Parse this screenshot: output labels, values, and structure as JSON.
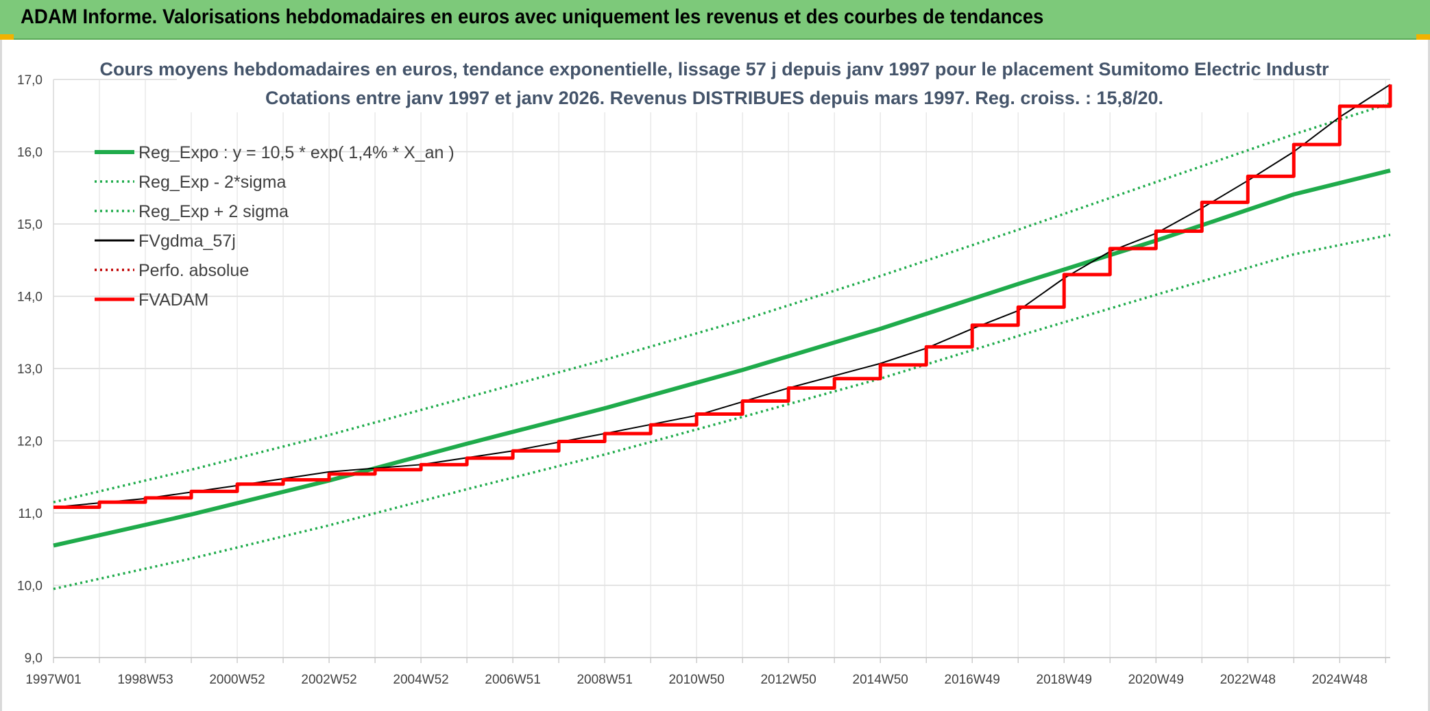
{
  "header": {
    "title": "ADAM Informe. Valorisations hebdomadaires en euros avec uniquement les revenus et des courbes de tendances"
  },
  "chart_data": {
    "type": "line",
    "title_line1": "Cours moyens hebdomadaires en euros, tendance exponentielle, lissage 57 j depuis janv 1997 pour le placement Sumitomo Electric Industr",
    "title_line2": "Cotations entre janv 1997 et janv 2026. Revenus DISTRIBUES depuis mars 1997. Reg. croiss. : 15,8/20.",
    "xlabel": "",
    "ylabel": "",
    "xlim": [
      1997.0,
      2026.1
    ],
    "ylim": [
      9.0,
      17.0
    ],
    "y_ticks": [
      "9,0",
      "10,0",
      "11,0",
      "12,0",
      "13,0",
      "14,0",
      "15,0",
      "16,0",
      "17,0"
    ],
    "y_tick_values": [
      9,
      10,
      11,
      12,
      13,
      14,
      15,
      16,
      17
    ],
    "x_tick_labels": [
      "1997W01",
      "1998W53",
      "2000W52",
      "2002W52",
      "2004W52",
      "2006W51",
      "2008W51",
      "2010W50",
      "2012W50",
      "2014W50",
      "2016W49",
      "2018W49",
      "2020W49",
      "2022W48",
      "2024W48"
    ],
    "x_tick_years": [
      1997.0,
      1999.0,
      2001.0,
      2003.0,
      2005.0,
      2007.0,
      2009.0,
      2011.0,
      2013.0,
      2015.0,
      2017.0,
      2019.0,
      2021.0,
      2023.0,
      2025.0
    ],
    "grid": true,
    "legend_position": "top-left",
    "series": [
      {
        "name": "Reg_Expo : y = 10,5 * exp( 1,4% *  X_an )",
        "color": "#1fab4b",
        "style": "solid-thick",
        "x": [
          1997,
          2000,
          2003,
          2006,
          2009,
          2012,
          2015,
          2018,
          2021,
          2024,
          2026.1
        ],
        "y": [
          10.55,
          10.98,
          11.45,
          11.96,
          12.45,
          12.98,
          13.55,
          14.17,
          14.77,
          15.41,
          15.74
        ]
      },
      {
        "name": "Reg_Exp - 2*sigma",
        "color": "#1fab4b",
        "style": "dotted",
        "x": [
          1997,
          2000,
          2003,
          2006,
          2009,
          2012,
          2015,
          2018,
          2021,
          2024,
          2026.1
        ],
        "y": [
          9.95,
          10.37,
          10.83,
          11.33,
          11.81,
          12.33,
          12.86,
          13.45,
          14.02,
          14.58,
          14.85
        ]
      },
      {
        "name": "Reg_Exp + 2 sigma",
        "color": "#1fab4b",
        "style": "dotted",
        "x": [
          1997,
          2000,
          2003,
          2006,
          2009,
          2012,
          2015,
          2018,
          2021,
          2024,
          2026.1
        ],
        "y": [
          11.15,
          11.6,
          12.08,
          12.6,
          13.12,
          13.67,
          14.28,
          14.92,
          15.58,
          16.24,
          16.67
        ]
      },
      {
        "name": "FVgdma_57j",
        "color": "#000000",
        "style": "solid-thin",
        "x": [
          1997,
          1999,
          2001,
          2003,
          2005,
          2007,
          2009,
          2011,
          2013,
          2015,
          2016,
          2017,
          2018,
          2019,
          2020,
          2021,
          2022,
          2023,
          2024,
          2025,
          2026.1
        ],
        "y": [
          11.08,
          11.2,
          11.38,
          11.57,
          11.67,
          11.86,
          12.1,
          12.35,
          12.73,
          13.07,
          13.28,
          13.55,
          13.8,
          14.25,
          14.62,
          14.87,
          15.22,
          15.6,
          16.0,
          16.48,
          16.93
        ]
      },
      {
        "name": "Perfo. absolue",
        "color": "#c00000",
        "style": "dotted",
        "x": [],
        "y": []
      },
      {
        "name": "FVADAM",
        "color": "#ff0000",
        "style": "stepped-thick",
        "x": [
          1997,
          1998,
          1999,
          2000,
          2001,
          2002,
          2003,
          2004,
          2005,
          2006,
          2007,
          2008,
          2009,
          2010,
          2011,
          2012,
          2013,
          2014,
          2015,
          2016,
          2017,
          2018,
          2019,
          2020,
          2021,
          2022,
          2023,
          2024,
          2025,
          2026.1
        ],
        "y": [
          11.08,
          11.15,
          11.21,
          11.3,
          11.4,
          11.46,
          11.54,
          11.6,
          11.67,
          11.76,
          11.86,
          11.99,
          12.1,
          12.22,
          12.37,
          12.55,
          12.73,
          12.86,
          13.05,
          13.3,
          13.6,
          13.85,
          14.3,
          14.66,
          14.9,
          15.3,
          15.66,
          16.1,
          16.63,
          16.93
        ]
      }
    ]
  }
}
